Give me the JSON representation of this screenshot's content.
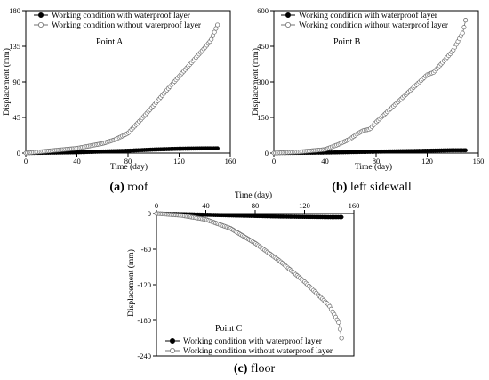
{
  "chart_data": [
    {
      "type": "line",
      "note": "Point A",
      "caption_letter": "(a)",
      "caption_text": "roof",
      "xlabel": "Time (day)",
      "ylabel": "Displacement (mm)",
      "xlim": [
        0,
        160
      ],
      "ylim": [
        0,
        180
      ],
      "xticks": [
        0,
        40,
        80,
        120,
        160
      ],
      "yticks": [
        0,
        45,
        90,
        135,
        180
      ],
      "legend_position": "top-left",
      "series": [
        {
          "name": "Working condition with waterproof layer",
          "marker": "filled-circle",
          "x": [
            0,
            20,
            40,
            60,
            80,
            100,
            120,
            140,
            150
          ],
          "y": [
            0,
            0.5,
            1,
            2,
            3,
            4.5,
            5.5,
            6,
            6
          ]
        },
        {
          "name": "Working condition without waterproof layer",
          "marker": "open-circle",
          "x": [
            0,
            20,
            40,
            60,
            70,
            80,
            90,
            100,
            110,
            120,
            130,
            140,
            145,
            150
          ],
          "y": [
            0,
            3,
            6,
            12,
            17,
            25,
            42,
            60,
            79,
            97,
            115,
            133,
            143,
            162
          ]
        }
      ]
    },
    {
      "type": "line",
      "note": "Point B",
      "caption_letter": "(b)",
      "caption_text": "left sidewall",
      "xlabel": "Time (day)",
      "ylabel": "Displacement (mm)",
      "xlim": [
        0,
        160
      ],
      "ylim": [
        0,
        600
      ],
      "xticks": [
        0,
        40,
        80,
        120,
        160
      ],
      "yticks": [
        0,
        150,
        300,
        450,
        600
      ],
      "legend_position": "top-left",
      "series": [
        {
          "name": "Working condition with waterproof layer",
          "marker": "filled-circle",
          "x": [
            0,
            20,
            40,
            60,
            80,
            100,
            120,
            140,
            150
          ],
          "y": [
            0,
            1,
            2,
            4,
            6,
            8,
            10,
            12,
            12
          ]
        },
        {
          "name": "Working condition without waterproof layer",
          "marker": "open-circle",
          "x": [
            0,
            20,
            40,
            50,
            60,
            65,
            70,
            75,
            80,
            90,
            100,
            110,
            120,
            125,
            130,
            140,
            145,
            148,
            150
          ],
          "y": [
            0,
            5,
            15,
            35,
            60,
            80,
            95,
            100,
            130,
            180,
            230,
            280,
            330,
            340,
            370,
            430,
            480,
            510,
            560
          ]
        }
      ]
    },
    {
      "type": "line",
      "note": "Point C",
      "caption_letter": "(c)",
      "caption_text": "floor",
      "xlabel": "Time (day)",
      "ylabel": "Displacement (mm)",
      "xlim": [
        0,
        160
      ],
      "ylim": [
        -240,
        0
      ],
      "xticks": [
        0,
        40,
        80,
        120,
        160
      ],
      "yticks": [
        0,
        -60,
        -120,
        -180,
        -240
      ],
      "legend_position": "bottom-left",
      "series": [
        {
          "name": "Working condition with waterproof layer",
          "marker": "filled-circle",
          "x": [
            0,
            20,
            40,
            60,
            80,
            100,
            120,
            140,
            150
          ],
          "y": [
            0,
            -1,
            -2,
            -3,
            -4,
            -5,
            -5.5,
            -6,
            -6
          ]
        },
        {
          "name": "Working condition without waterproof layer",
          "marker": "open-circle",
          "x": [
            0,
            20,
            40,
            60,
            80,
            100,
            120,
            140,
            148,
            150
          ],
          "y": [
            0,
            -3,
            -10,
            -25,
            -50,
            -80,
            -115,
            -155,
            -185,
            -210
          ]
        }
      ]
    }
  ]
}
